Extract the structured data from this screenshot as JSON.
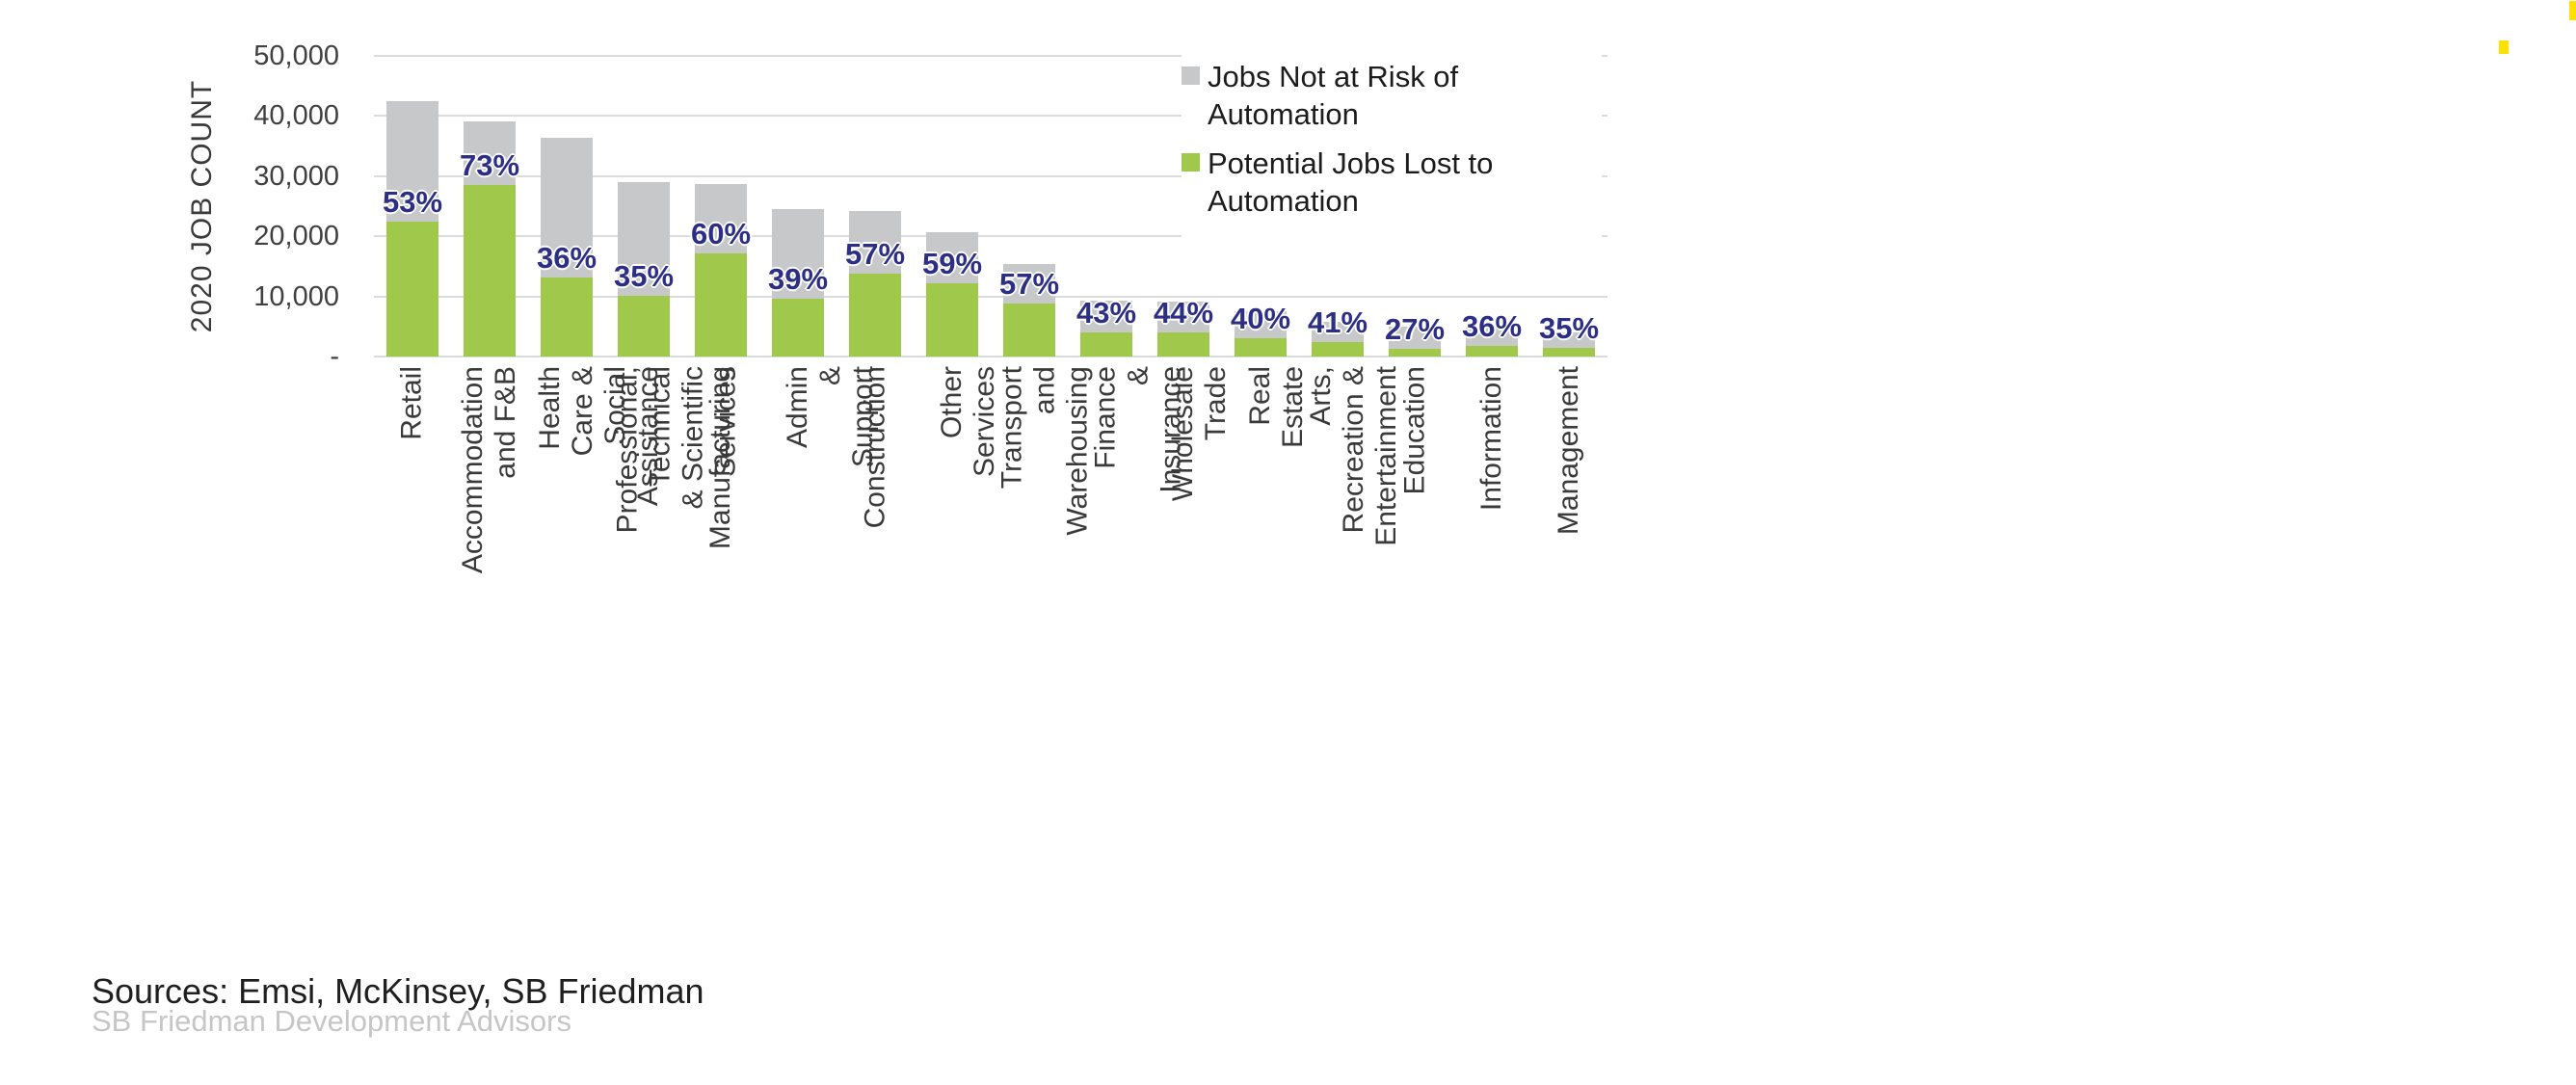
{
  "chart_data": {
    "type": "bar",
    "stacked": true,
    "ylabel": "2020 JOB COUNT",
    "xlabel": "",
    "ylim": [
      0,
      50000
    ],
    "grid": "horizontal-only",
    "gridline_color": "#dcdcdc",
    "legend_position": "top-right-inside",
    "ytick_values": [
      50000,
      40000,
      30000,
      20000,
      10000,
      0
    ],
    "ytick_labels": [
      "50,000",
      "40,000",
      "30,000",
      "20,000",
      "10,000",
      "-"
    ],
    "categories": [
      "Retail",
      "Accommodation\nand F&B",
      "Health Care & Social\nAssistance",
      "Professional, Technical\n& Scientific Services",
      "Manufacturing",
      "Admin & Support",
      "Construction",
      "Other Services",
      "Transport and\nWarehousing",
      "Finance & Insurance",
      "Wholesale Trade",
      "Real Estate",
      "Arts, Recreation &\nEntertainment",
      "Education",
      "Information",
      "Management"
    ],
    "series": [
      {
        "name": "Potential Jobs Lost to Automation",
        "color": "#a0c94b",
        "values": [
          22500,
          28500,
          13100,
          10150,
          17200,
          9550,
          13800,
          12200,
          8850,
          3950,
          3950,
          3000,
          2400,
          1350,
          1700,
          1400
        ]
      },
      {
        "name": "Jobs Not at Risk of Automation",
        "color": "#c7c8ca",
        "values": [
          20000,
          10500,
          23200,
          18850,
          11500,
          14950,
          10400,
          8500,
          6650,
          5250,
          5050,
          4500,
          3400,
          3650,
          3000,
          2600
        ]
      }
    ],
    "totals": [
      42500,
      39000,
      36300,
      29000,
      28700,
      24500,
      24200,
      20700,
      15500,
      9200,
      9000,
      7500,
      5800,
      5000,
      4700,
      4000
    ],
    "pct_labels": [
      "53%",
      "73%",
      "36%",
      "35%",
      "60%",
      "39%",
      "57%",
      "59%",
      "57%",
      "43%",
      "44%",
      "40%",
      "41%",
      "27%",
      "36%",
      "35%"
    ],
    "pct_label_color": "#2d2f84",
    "legend": {
      "items": [
        {
          "label": "Jobs Not at Risk of\nAutomation",
          "color": "#c7c8ca"
        },
        {
          "label": "Potential Jobs Lost to\nAutomation",
          "color": "#a0c94b"
        }
      ]
    }
  },
  "footer": {
    "sources": "Sources: Emsi, McKinsey, SB Friedman",
    "attribution": "SB Friedman Development Advisors"
  },
  "artifacts": {
    "yellow_mark_color": "#ffe000"
  }
}
